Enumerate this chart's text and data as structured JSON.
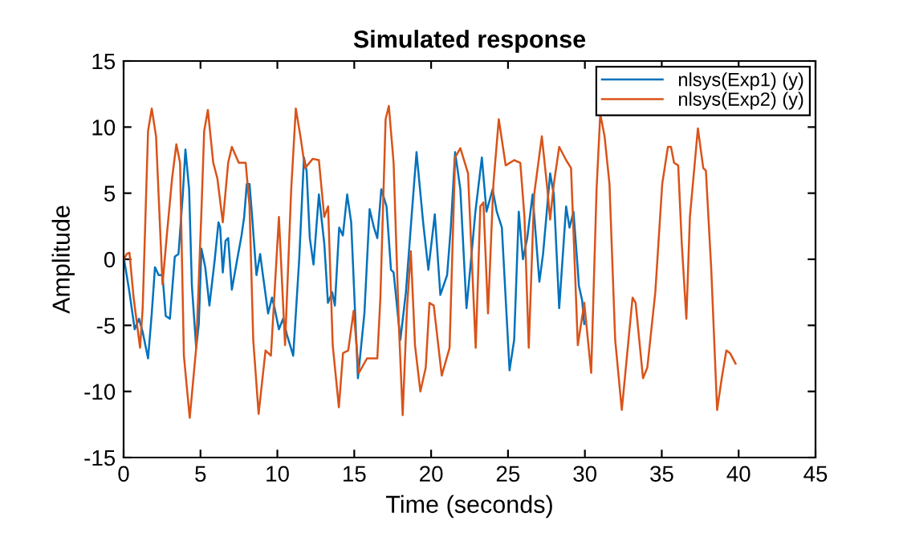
{
  "chart_data": {
    "type": "line",
    "title": "Simulated response",
    "xlabel": "Time (seconds)",
    "ylabel": "Amplitude",
    "xlim": [
      0,
      45
    ],
    "ylim": [
      -15,
      15
    ],
    "xticks": [
      0,
      5,
      10,
      15,
      20,
      25,
      30,
      35,
      40,
      45
    ],
    "yticks": [
      -15,
      -10,
      -5,
      0,
      5,
      10,
      15
    ],
    "grid": false,
    "legend": "top right",
    "marker": "none",
    "line_style": "solid",
    "series": [
      {
        "name": "nlsys(Exp1) (y)",
        "color": "#0072bd",
        "x": [
          0.03,
          0.38,
          0.72,
          1.0,
          1.24,
          1.59,
          1.83,
          2.04,
          2.28,
          2.53,
          2.74,
          3.01,
          3.33,
          3.57,
          3.85,
          4.02,
          4.26,
          4.44,
          4.72,
          4.89,
          5.06,
          5.31,
          5.58,
          5.93,
          6.17,
          6.28,
          6.45,
          6.63,
          6.8,
          7.04,
          7.39,
          7.67,
          7.84,
          8.01,
          8.19,
          8.36,
          8.64,
          8.88,
          9.06,
          9.4,
          9.65,
          9.82,
          10.1,
          10.37,
          10.62,
          11.03,
          11.42,
          11.73,
          11.9,
          12.11,
          12.35,
          12.7,
          13.05,
          13.29,
          13.57,
          13.74,
          14.02,
          14.26,
          14.54,
          14.8,
          15.24,
          15.66,
          16.0,
          16.28,
          16.5,
          16.76,
          17.1,
          17.39,
          17.56,
          18.0,
          18.36,
          18.7,
          19.05,
          19.48,
          19.82,
          20.24,
          20.6,
          21.04,
          21.28,
          21.56,
          21.9,
          22.3,
          22.6,
          22.88,
          23.3,
          23.6,
          24.0,
          24.27,
          24.6,
          25.1,
          25.4,
          25.7,
          25.97,
          26.25,
          26.6,
          27.04,
          27.28,
          27.74,
          27.98,
          28.33,
          28.78,
          29.0,
          29.26,
          29.54,
          29.61,
          29.82,
          29.96
        ],
        "values": [
          0,
          -2.5,
          -5.3,
          -4.5,
          -5.5,
          -7.5,
          -4.1,
          -0.6,
          -1.2,
          -1.2,
          -4.3,
          -4.5,
          0.2,
          0.4,
          4.9,
          8.3,
          5.3,
          -2,
          -6.7,
          -4.9,
          0.8,
          -0.6,
          -3.5,
          0,
          2.8,
          2.4,
          -1,
          1.4,
          1.6,
          -2.3,
          0,
          1.8,
          3.2,
          5.7,
          5.7,
          3.2,
          -1.2,
          0.4,
          -1.2,
          -4.1,
          -2.9,
          -3.7,
          -5.3,
          -4.5,
          -5.7,
          -7.3,
          0,
          7.7,
          6.7,
          1.6,
          -0.4,
          4.9,
          1.2,
          -3.3,
          -2.5,
          -3.5,
          2.4,
          1.8,
          4.9,
          2.8,
          -9,
          -4.1,
          3.8,
          2.4,
          1.6,
          5.3,
          4,
          -0.8,
          -1,
          -6.1,
          -2.5,
          2.8,
          8.1,
          2.8,
          -0.8,
          3.4,
          -2.7,
          -1.2,
          2.4,
          8.1,
          5.3,
          -3.7,
          0,
          3.6,
          7.7,
          3.6,
          5.3,
          3.6,
          2.4,
          -8.4,
          -6.1,
          3.6,
          0,
          1.6,
          4.9,
          -1.7,
          0.4,
          6.5,
          4.9,
          -3.7,
          4,
          2.4,
          3.6,
          -0.8,
          -2,
          -3.1,
          -4.9
        ]
      },
      {
        "name": "nlsys(Exp2) (y)",
        "color": "#d95319",
        "x": [
          0.03,
          0.2,
          0.38,
          0.65,
          1.07,
          1.24,
          1.59,
          1.83,
          2.11,
          2.53,
          2.81,
          3.15,
          3.43,
          3.67,
          3.92,
          4.3,
          4.72,
          5.06,
          5.24,
          5.48,
          5.83,
          6.1,
          6.45,
          6.8,
          7.04,
          7.49,
          7.94,
          8.19,
          8.43,
          8.78,
          9.23,
          9.58,
          10.1,
          10.5,
          10.9,
          11.2,
          11.5,
          11.8,
          12.3,
          12.7,
          13.05,
          13.3,
          13.6,
          14.0,
          14.27,
          14.61,
          14.96,
          15.3,
          15.83,
          16.5,
          16.7,
          17.04,
          17.25,
          17.56,
          17.9,
          18.15,
          18.43,
          18.68,
          18.95,
          19.3,
          19.65,
          19.89,
          20.17,
          20.69,
          21.2,
          21.56,
          21.9,
          22.4,
          22.9,
          23.2,
          23.4,
          23.7,
          24.05,
          24.4,
          24.85,
          25.4,
          25.8,
          26.07,
          26.35,
          26.7,
          27.2,
          27.56,
          27.74,
          27.98,
          28.33,
          28.78,
          29.1,
          29.54,
          29.96,
          30.41,
          30.76,
          31.0,
          31.28,
          31.6,
          31.97,
          32.4,
          32.74,
          33.1,
          33.3,
          33.78,
          34.06,
          34.58,
          35.03,
          35.4,
          35.6,
          35.8,
          36.07,
          36.3,
          36.6,
          36.83,
          37.35,
          37.7,
          37.87,
          38.22,
          38.6,
          38.9,
          39.2,
          39.44,
          39.8
        ],
        "values": [
          0,
          0.4,
          0.5,
          -2.9,
          -6.7,
          -3.7,
          9.7,
          11.4,
          9.3,
          -1.9,
          1.8,
          6.1,
          8.7,
          7.3,
          -7.3,
          -12,
          -6.7,
          3.6,
          9.7,
          11.3,
          7.3,
          6.1,
          2.8,
          7.3,
          8.5,
          7.3,
          7.3,
          4,
          -6.1,
          -11.7,
          -6.9,
          -7.3,
          3.2,
          -6.5,
          5.3,
          11.4,
          9.3,
          6.9,
          7.6,
          7.5,
          3.2,
          4,
          -6.5,
          -11.2,
          -7.1,
          -6.9,
          -3.9,
          -8.6,
          -7.5,
          -7.5,
          -2.9,
          10.6,
          11.6,
          7.3,
          -4.9,
          -11.8,
          -3.7,
          0.6,
          -6.5,
          -10,
          -8.2,
          -3.3,
          -3.5,
          -8.8,
          -6.7,
          7.7,
          8.4,
          6.5,
          -6.7,
          4,
          4.3,
          -4.1,
          5.7,
          10.6,
          7.1,
          7.5,
          7.3,
          3.2,
          -6.7,
          4.9,
          9.3,
          5.3,
          3,
          5.7,
          8.5,
          7.5,
          6.9,
          -6.5,
          -3.3,
          -8.6,
          5.3,
          11,
          9.3,
          5.7,
          -6.1,
          -11.4,
          -7.3,
          -2.9,
          -3.3,
          -9,
          -8.2,
          -2.5,
          5.7,
          8.5,
          8.5,
          7.3,
          7.1,
          1.2,
          -4.5,
          3.2,
          9.9,
          6.9,
          6.7,
          -0.8,
          -11.4,
          -9,
          -6.9,
          -7.1,
          -7.9
        ]
      }
    ]
  }
}
